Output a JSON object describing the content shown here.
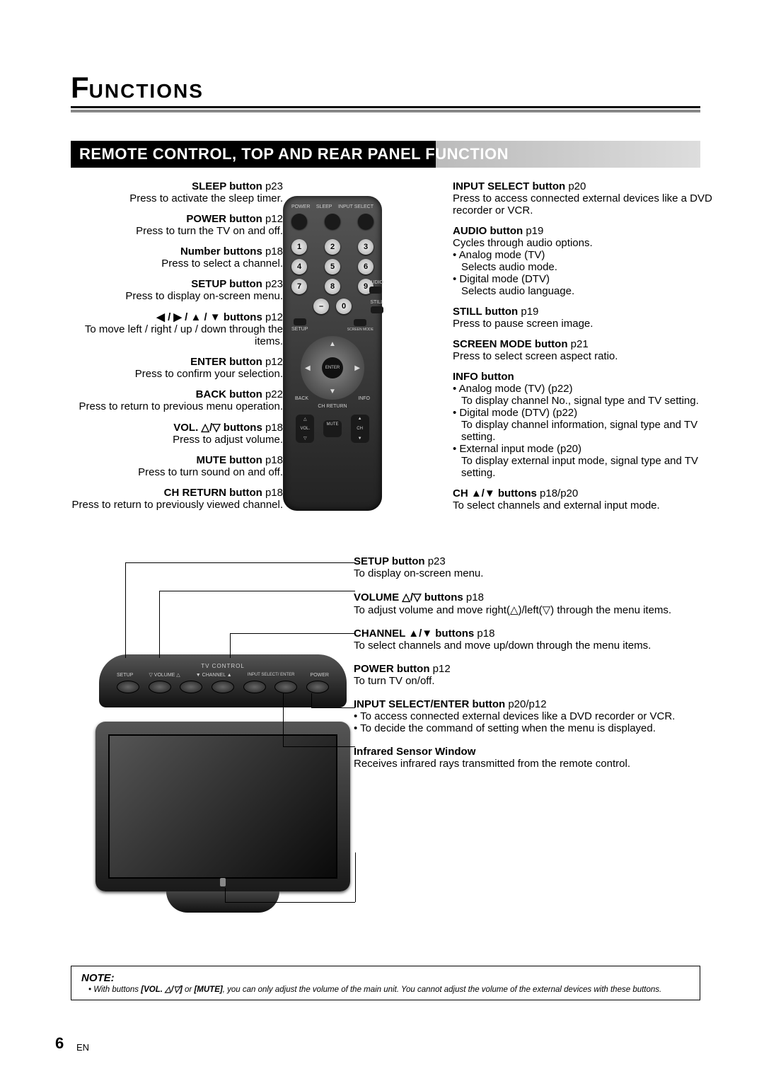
{
  "title": {
    "first_letter": "F",
    "rest": "UNCTIONS"
  },
  "subtitle": "REMOTE CONTROL, TOP AND REAR PANEL FUNCTION",
  "left": [
    {
      "hd": "SLEEP button",
      "pg": "p23",
      "desc": "Press to activate the sleep timer."
    },
    {
      "hd": "POWER button",
      "pg": "p12",
      "desc": "Press to turn the TV on and off."
    },
    {
      "hd": "Number buttons",
      "pg": "p18",
      "desc": "Press to select a channel."
    },
    {
      "hd": "SETUP button",
      "pg": "p23",
      "desc": "Press to display on-screen menu."
    },
    {
      "hd": "◀ / ▶ / ▲ / ▼ buttons",
      "pg": "p12",
      "desc": "To move left / right / up / down through the items."
    },
    {
      "hd": "ENTER button",
      "pg": "p12",
      "desc": "Press to confirm your selection."
    },
    {
      "hd": "BACK button",
      "pg": "p22",
      "desc": "Press to return to previous menu operation."
    },
    {
      "hd": "VOL. △/▽ buttons",
      "pg": "p18",
      "desc": "Press to adjust volume."
    },
    {
      "hd": "MUTE button",
      "pg": "p18",
      "desc": "Press to turn sound on and off."
    },
    {
      "hd": "CH RETURN button",
      "pg": "p18",
      "desc": "Press to return to previously viewed channel."
    }
  ],
  "right": [
    {
      "hd": "INPUT SELECT button",
      "pg": "p20",
      "desc": "Press to access connected external devices like a DVD recorder or VCR."
    },
    {
      "hd": "AUDIO button",
      "pg": "p19",
      "desc": "Cycles through audio options.",
      "bullets": [
        {
          "t": "Analog mode (TV)",
          "s": "Selects audio mode."
        },
        {
          "t": "Digital mode (DTV)",
          "s": "Selects audio language."
        }
      ]
    },
    {
      "hd": "STILL button",
      "pg": "p19",
      "desc": "Press to pause screen image."
    },
    {
      "hd": "SCREEN MODE button",
      "pg": "p21",
      "desc": "Press to select screen aspect ratio."
    },
    {
      "hd": "INFO button",
      "pg": "",
      "desc": "",
      "bullets": [
        {
          "t": "Analog mode (TV) (p22)",
          "s": "To display channel No., signal type and TV setting."
        },
        {
          "t": "Digital mode (DTV) (p22)",
          "s": "To display channel information, signal type and TV setting."
        },
        {
          "t": "External input mode (p20)",
          "s": "To display external input mode, signal type and TV setting."
        }
      ]
    },
    {
      "hd": "CH ▲/▼ buttons",
      "pg": "p18/p20",
      "desc": "To select channels and external input mode."
    }
  ],
  "panel": [
    {
      "hd": "SETUP button",
      "pg": "p23",
      "desc": "To display on-screen menu."
    },
    {
      "hd": "VOLUME △/▽ buttons",
      "pg": "p18",
      "desc": "To adjust volume and move right(△)/left(▽) through the menu items."
    },
    {
      "hd": "CHANNEL ▲/▼ buttons",
      "pg": "p18",
      "desc": "To select channels and move up/down through the menu items."
    },
    {
      "hd": "POWER button",
      "pg": "p12",
      "desc": "To turn TV on/off."
    },
    {
      "hd": "INPUT SELECT/ENTER button",
      "pg": "p20/p12",
      "desc": "",
      "bullets": [
        {
          "t": "To access connected external devices like a DVD recorder or VCR."
        },
        {
          "t": "To decide the command of setting when the menu is displayed."
        }
      ]
    },
    {
      "hd": "Infrared Sensor Window",
      "pg": "",
      "desc": "Receives infrared rays transmitted from the remote control."
    }
  ],
  "remote": {
    "top_labels": [
      "POWER",
      "SLEEP",
      "INPUT SELECT"
    ],
    "side_labels": [
      "AUDIO",
      "STILL",
      "SETUP",
      "SCREEN MODE",
      "BACK",
      "INFO",
      "CH RETURN"
    ],
    "enter": "ENTER",
    "rockers": [
      {
        "top": "△",
        "mid": "VOL.",
        "bot": "▽"
      },
      {
        "top": "",
        "mid": "MUTE",
        "bot": ""
      },
      {
        "top": "▲",
        "mid": "CH",
        "bot": "▼"
      }
    ],
    "numbers": [
      "1",
      "2",
      "3",
      "4",
      "5",
      "6",
      "7",
      "8",
      "9",
      "–",
      "0"
    ]
  },
  "top_panel": {
    "title": "TV CONTROL",
    "labels": [
      "SETUP",
      "▽ VOLUME △",
      "▼ CHANNEL ▲",
      "INPUT SELECT/ ENTER",
      "POWER"
    ]
  },
  "note": {
    "heading": "NOTE:",
    "text_pre": "With buttons ",
    "vol": "[VOL. △/▽]",
    "or": " or ",
    "mute": "[MUTE]",
    "text_post": ", you can only adjust the volume of the main unit. You cannot adjust the volume of the external devices with these buttons."
  },
  "page_number": "6",
  "page_lang": "EN",
  "colors": {
    "gradient_gray": "#bbbbbb",
    "text": "#000000"
  }
}
